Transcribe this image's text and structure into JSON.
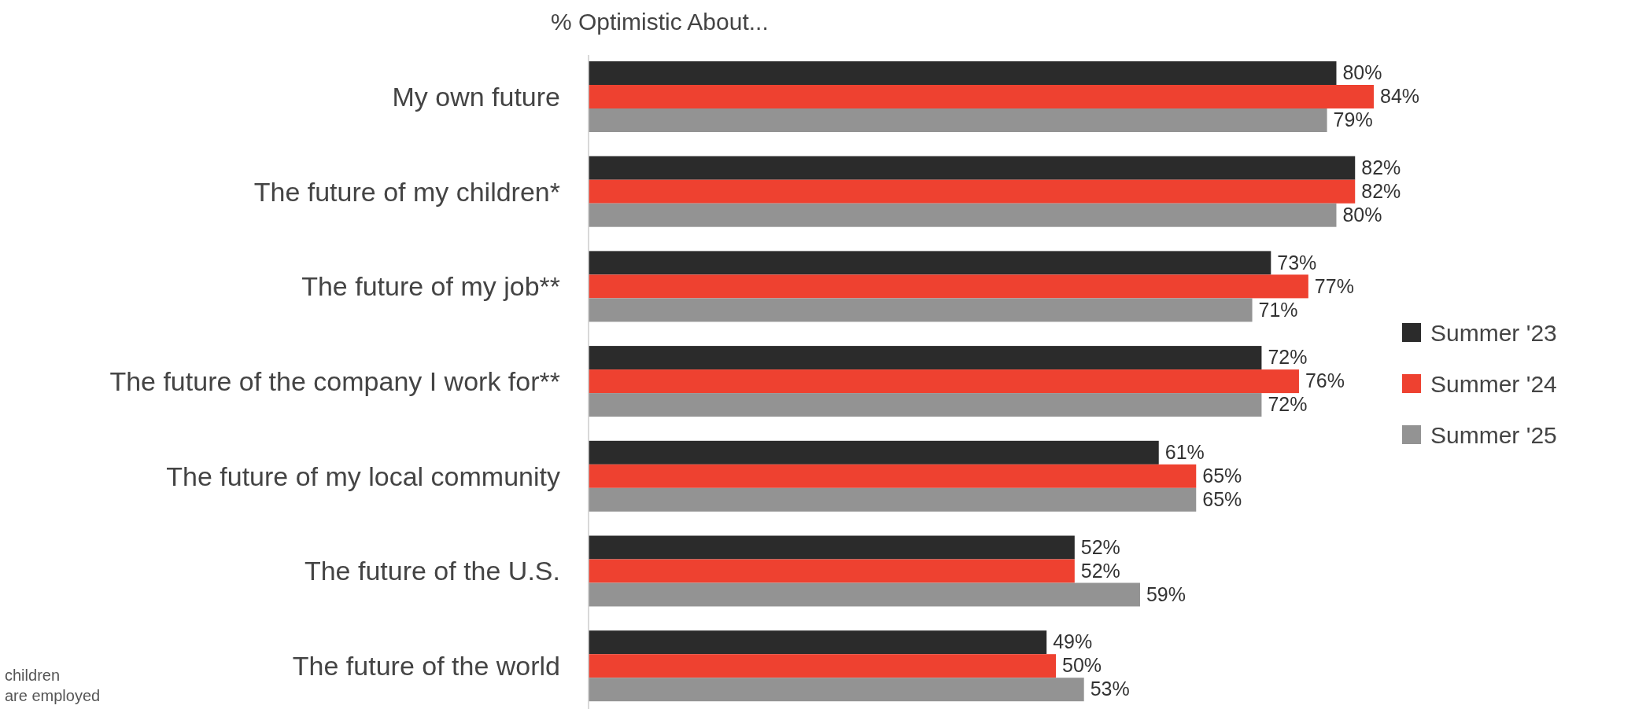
{
  "chart_data": {
    "type": "bar",
    "orientation": "horizontal",
    "title": "% Optimistic About...",
    "categories": [
      "My own future",
      "The future of my children*",
      "The future of my job**",
      "The future of the company I work for**",
      "The future of my local community",
      "The future of the U.S.",
      "The future of the world"
    ],
    "series": [
      {
        "name": "Summer '23",
        "color": "#2b2b2b",
        "values": [
          80,
          82,
          73,
          72,
          61,
          52,
          49
        ],
        "value_labels": [
          "80%",
          "82%",
          "73%",
          "72%",
          "61%",
          "52%",
          "49%"
        ]
      },
      {
        "name": "Summer '24",
        "color": "#ee4130",
        "values": [
          84,
          82,
          77,
          76,
          65,
          52,
          50
        ],
        "value_labels": [
          "84%",
          "82%",
          "77%",
          "76%",
          "65%",
          "52%",
          "50%"
        ]
      },
      {
        "name": "Summer '25",
        "color": "#939393",
        "values": [
          79,
          80,
          71,
          72,
          65,
          59,
          53
        ],
        "value_labels": [
          "79%",
          "80%",
          "71%",
          "72%",
          "65%",
          "59%",
          "53%"
        ]
      }
    ],
    "legend": "right",
    "annotations": [
      "children",
      "are employed"
    ]
  }
}
